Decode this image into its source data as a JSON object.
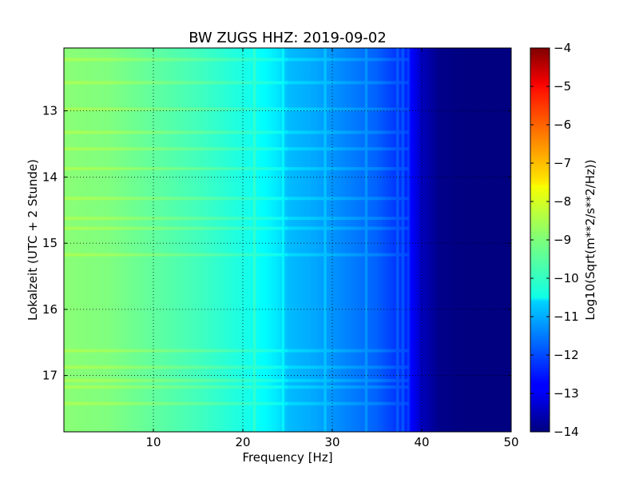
{
  "chart_data": {
    "type": "heatmap",
    "title": "BW ZUGS HHZ: 2019-09-02",
    "xlabel": "Frequency [Hz]",
    "ylabel": "Lokalzeit (UTC + 2 Stunde)",
    "xlim": [
      0,
      50
    ],
    "ylim": [
      12.05,
      17.85
    ],
    "y_inverted": true,
    "x_ticks": [
      10,
      20,
      30,
      40,
      50
    ],
    "y_ticks": [
      13,
      14,
      15,
      16,
      17
    ],
    "grid": true,
    "colorbar": {
      "label": "Log10(Sqrt(m**2/s**2/Hz))",
      "range": [
        -14,
        -4
      ],
      "ticks": [
        -4,
        -5,
        -6,
        -7,
        -8,
        -9,
        -10,
        -11,
        -12,
        -13,
        -14
      ],
      "colormap": "jet"
    },
    "spectrum_profile": {
      "frequency_hz": [
        0,
        5,
        10,
        15,
        20,
        22,
        24,
        25,
        28,
        30,
        33,
        35,
        37,
        38,
        39,
        40,
        42,
        45,
        50
      ],
      "log_amplitude": [
        -8.9,
        -9.0,
        -9.3,
        -9.6,
        -10.0,
        -10.2,
        -10.5,
        -10.9,
        -11.1,
        -11.3,
        -11.6,
        -11.8,
        -12.2,
        -12.3,
        -12.8,
        -13.4,
        -13.9,
        -14.0,
        -14.0
      ]
    },
    "line_features_hz": [
      21.3,
      24.5,
      29.2,
      33.8,
      37.3,
      37.9,
      38.5
    ],
    "time_bands_hour": [
      12.2,
      12.55,
      12.95,
      13.3,
      13.55,
      13.85,
      14.3,
      14.6,
      14.75,
      15.15,
      16.6,
      16.85,
      17.05,
      17.15,
      17.4
    ]
  }
}
